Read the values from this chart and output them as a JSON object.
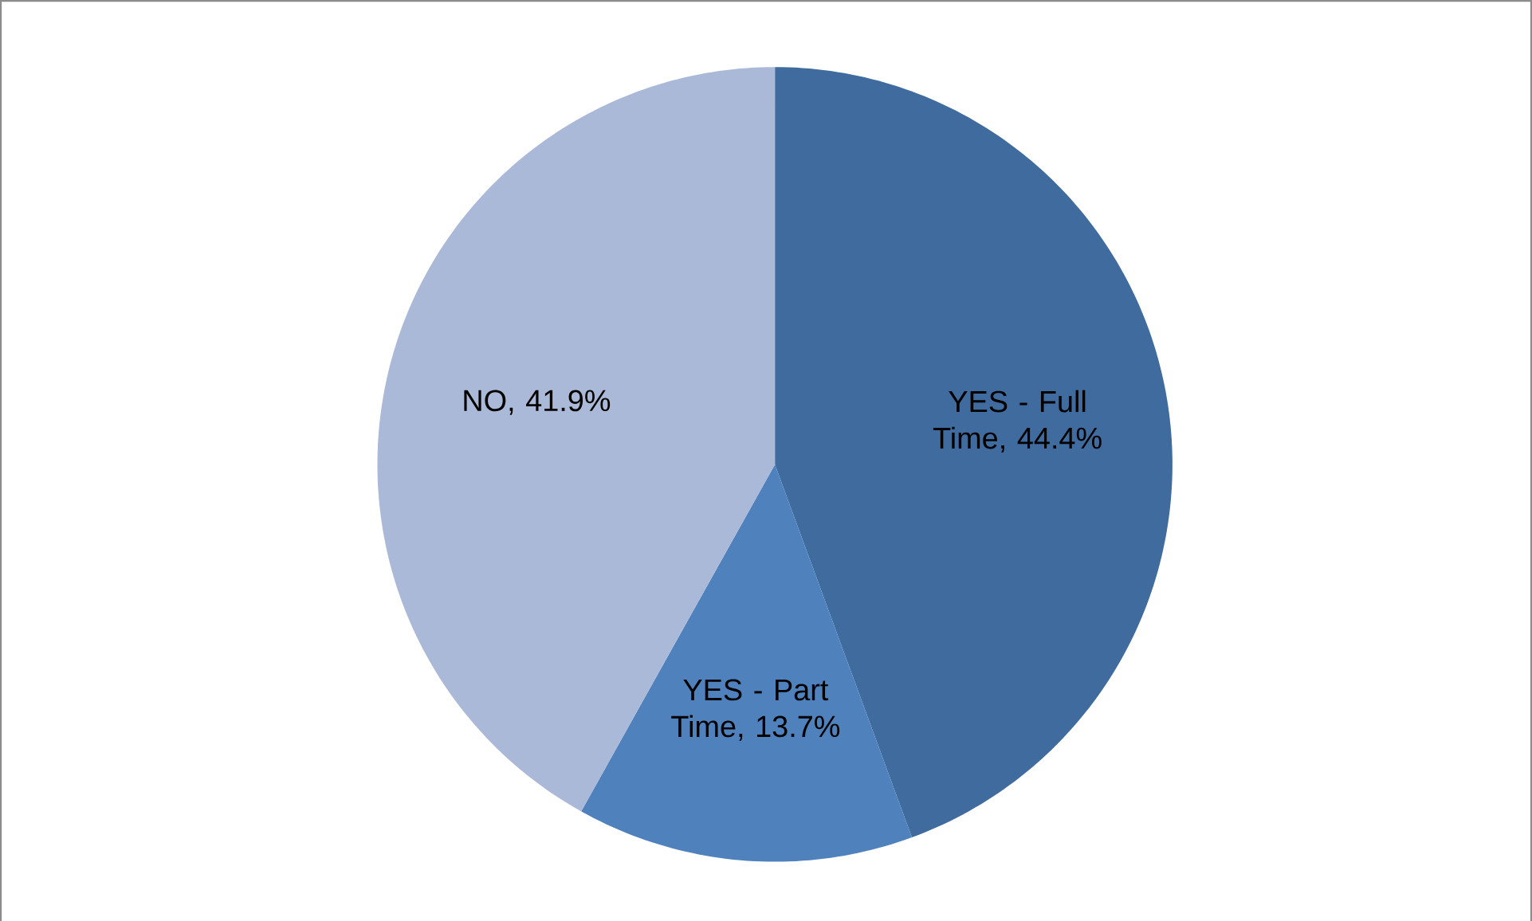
{
  "chart_data": {
    "type": "pie",
    "categories": [
      "YES - Full Time",
      "YES - Part Time",
      "NO"
    ],
    "values": [
      44.4,
      13.7,
      41.9
    ],
    "value_labels": [
      ", 44.4%",
      ", 13.7%",
      ", 41.9%"
    ],
    "colors": [
      "#3f6b9e",
      "#4f81bd",
      "#aab9d7"
    ],
    "data_labels": true
  }
}
